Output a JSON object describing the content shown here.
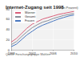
{
  "chart_data": {
    "type": "line",
    "title": "Internet-Zugang seit 1998",
    "subtitle": "(in Prozent)",
    "annotations": [
      "Quelle: Forschungsgruppe Wahlen"
    ],
    "x": [
      1998,
      1999,
      2000,
      2001,
      2002,
      2003,
      2004,
      2005,
      2006,
      2007,
      2008,
      2009,
      2010
    ],
    "series": [
      {
        "name": "Männer",
        "color": "#d9607a",
        "values": [
          15,
          22,
          32,
          42,
          50,
          55,
          60,
          63,
          66,
          69,
          71,
          73,
          75
        ]
      },
      {
        "name": "Gesamt",
        "color": "#8a8f9a",
        "values": [
          10,
          16,
          26,
          35,
          43,
          49,
          54,
          57,
          61,
          64,
          67,
          69,
          71
        ]
      },
      {
        "name": "Frauen",
        "color": "#4a78c0",
        "values": [
          6,
          11,
          20,
          29,
          36,
          43,
          48,
          52,
          56,
          60,
          63,
          66,
          68
        ]
      }
    ],
    "xlim": [
      1998,
      2010
    ],
    "xticks": [
      1998,
      2002,
      2006,
      2010
    ],
    "ylim": [
      0,
      80
    ],
    "yticks": [
      0,
      20,
      40,
      60,
      80
    ],
    "grid": true,
    "legend": "upper left"
  }
}
